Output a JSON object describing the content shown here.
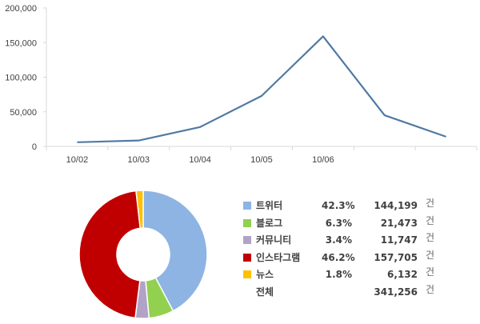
{
  "chart_data": [
    {
      "type": "line",
      "categories": [
        "10/02",
        "10/03",
        "10/04",
        "10/05",
        "10/06",
        "",
        ""
      ],
      "values": [
        6000,
        8500,
        28000,
        73000,
        159000,
        45000,
        14000
      ],
      "ylim": [
        0,
        200000
      ],
      "yticks": [
        "0",
        "50,000",
        "100,000",
        "150,000",
        "200,000"
      ],
      "grid": false,
      "color": "#4f7aa3"
    },
    {
      "type": "pie",
      "donut": true,
      "labels": [
        "트위터",
        "블로그",
        "커뮤니티",
        "인스타그램",
        "뉴스"
      ],
      "percents": [
        "42.3%",
        "6.3%",
        "3.4%",
        "46.2%",
        "1.8%"
      ],
      "values": [
        144199,
        21473,
        11747,
        157705,
        6132
      ],
      "counts": [
        "144,199",
        "21,473",
        "11,747",
        "157,705",
        "6,132"
      ],
      "colors": [
        "#8eb4e3",
        "#92d050",
        "#b3a2c7",
        "#c00000",
        "#ffc000"
      ],
      "total_label": "전체",
      "total": "341,256",
      "unit": "건"
    }
  ]
}
